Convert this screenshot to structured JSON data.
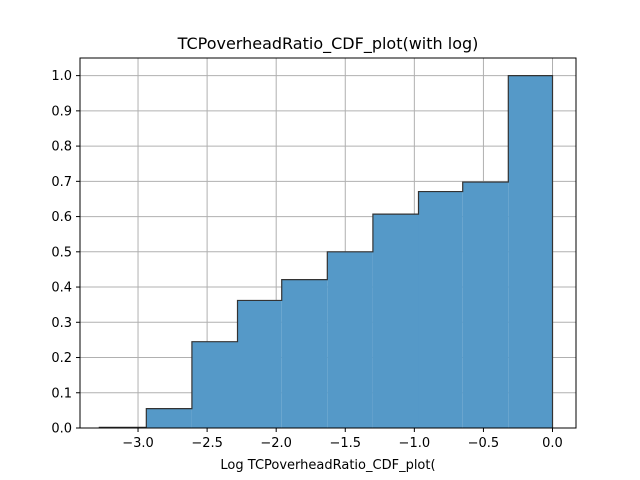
{
  "chart_data": {
    "type": "bar",
    "title": "TCPoverheadRatio_CDF_plot(with log)",
    "xlabel": "Log TCPoverheadRatio_CDF_plot(",
    "ylabel": "",
    "xlim": [
      -3.42,
      0.17
    ],
    "ylim": [
      0.0,
      1.05
    ],
    "grid": true,
    "bin_edges": [
      -3.28,
      -2.94,
      -2.61,
      -2.28,
      -1.96,
      -1.63,
      -1.3,
      -0.97,
      -0.65,
      -0.32,
      0.0
    ],
    "values": [
      0.002,
      0.055,
      0.245,
      0.362,
      0.421,
      0.5,
      0.607,
      0.671,
      0.698,
      1.0
    ],
    "xticks": [
      -3.0,
      -2.5,
      -2.0,
      -1.5,
      -1.0,
      -0.5,
      0.0
    ],
    "xtick_labels": [
      "−3.0",
      "−2.5",
      "−2.0",
      "−1.5",
      "−1.0",
      "−0.5",
      "0.0"
    ],
    "yticks": [
      0.0,
      0.1,
      0.2,
      0.3,
      0.4,
      0.5,
      0.6,
      0.7,
      0.8,
      0.9,
      1.0
    ],
    "ytick_labels": [
      "0.0",
      "0.1",
      "0.2",
      "0.3",
      "0.4",
      "0.5",
      "0.6",
      "0.7",
      "0.8",
      "0.9",
      "1.0"
    ],
    "bar_color": "#5599c8",
    "edge_color": "#333333",
    "grid_color": "#b0b0b0"
  }
}
